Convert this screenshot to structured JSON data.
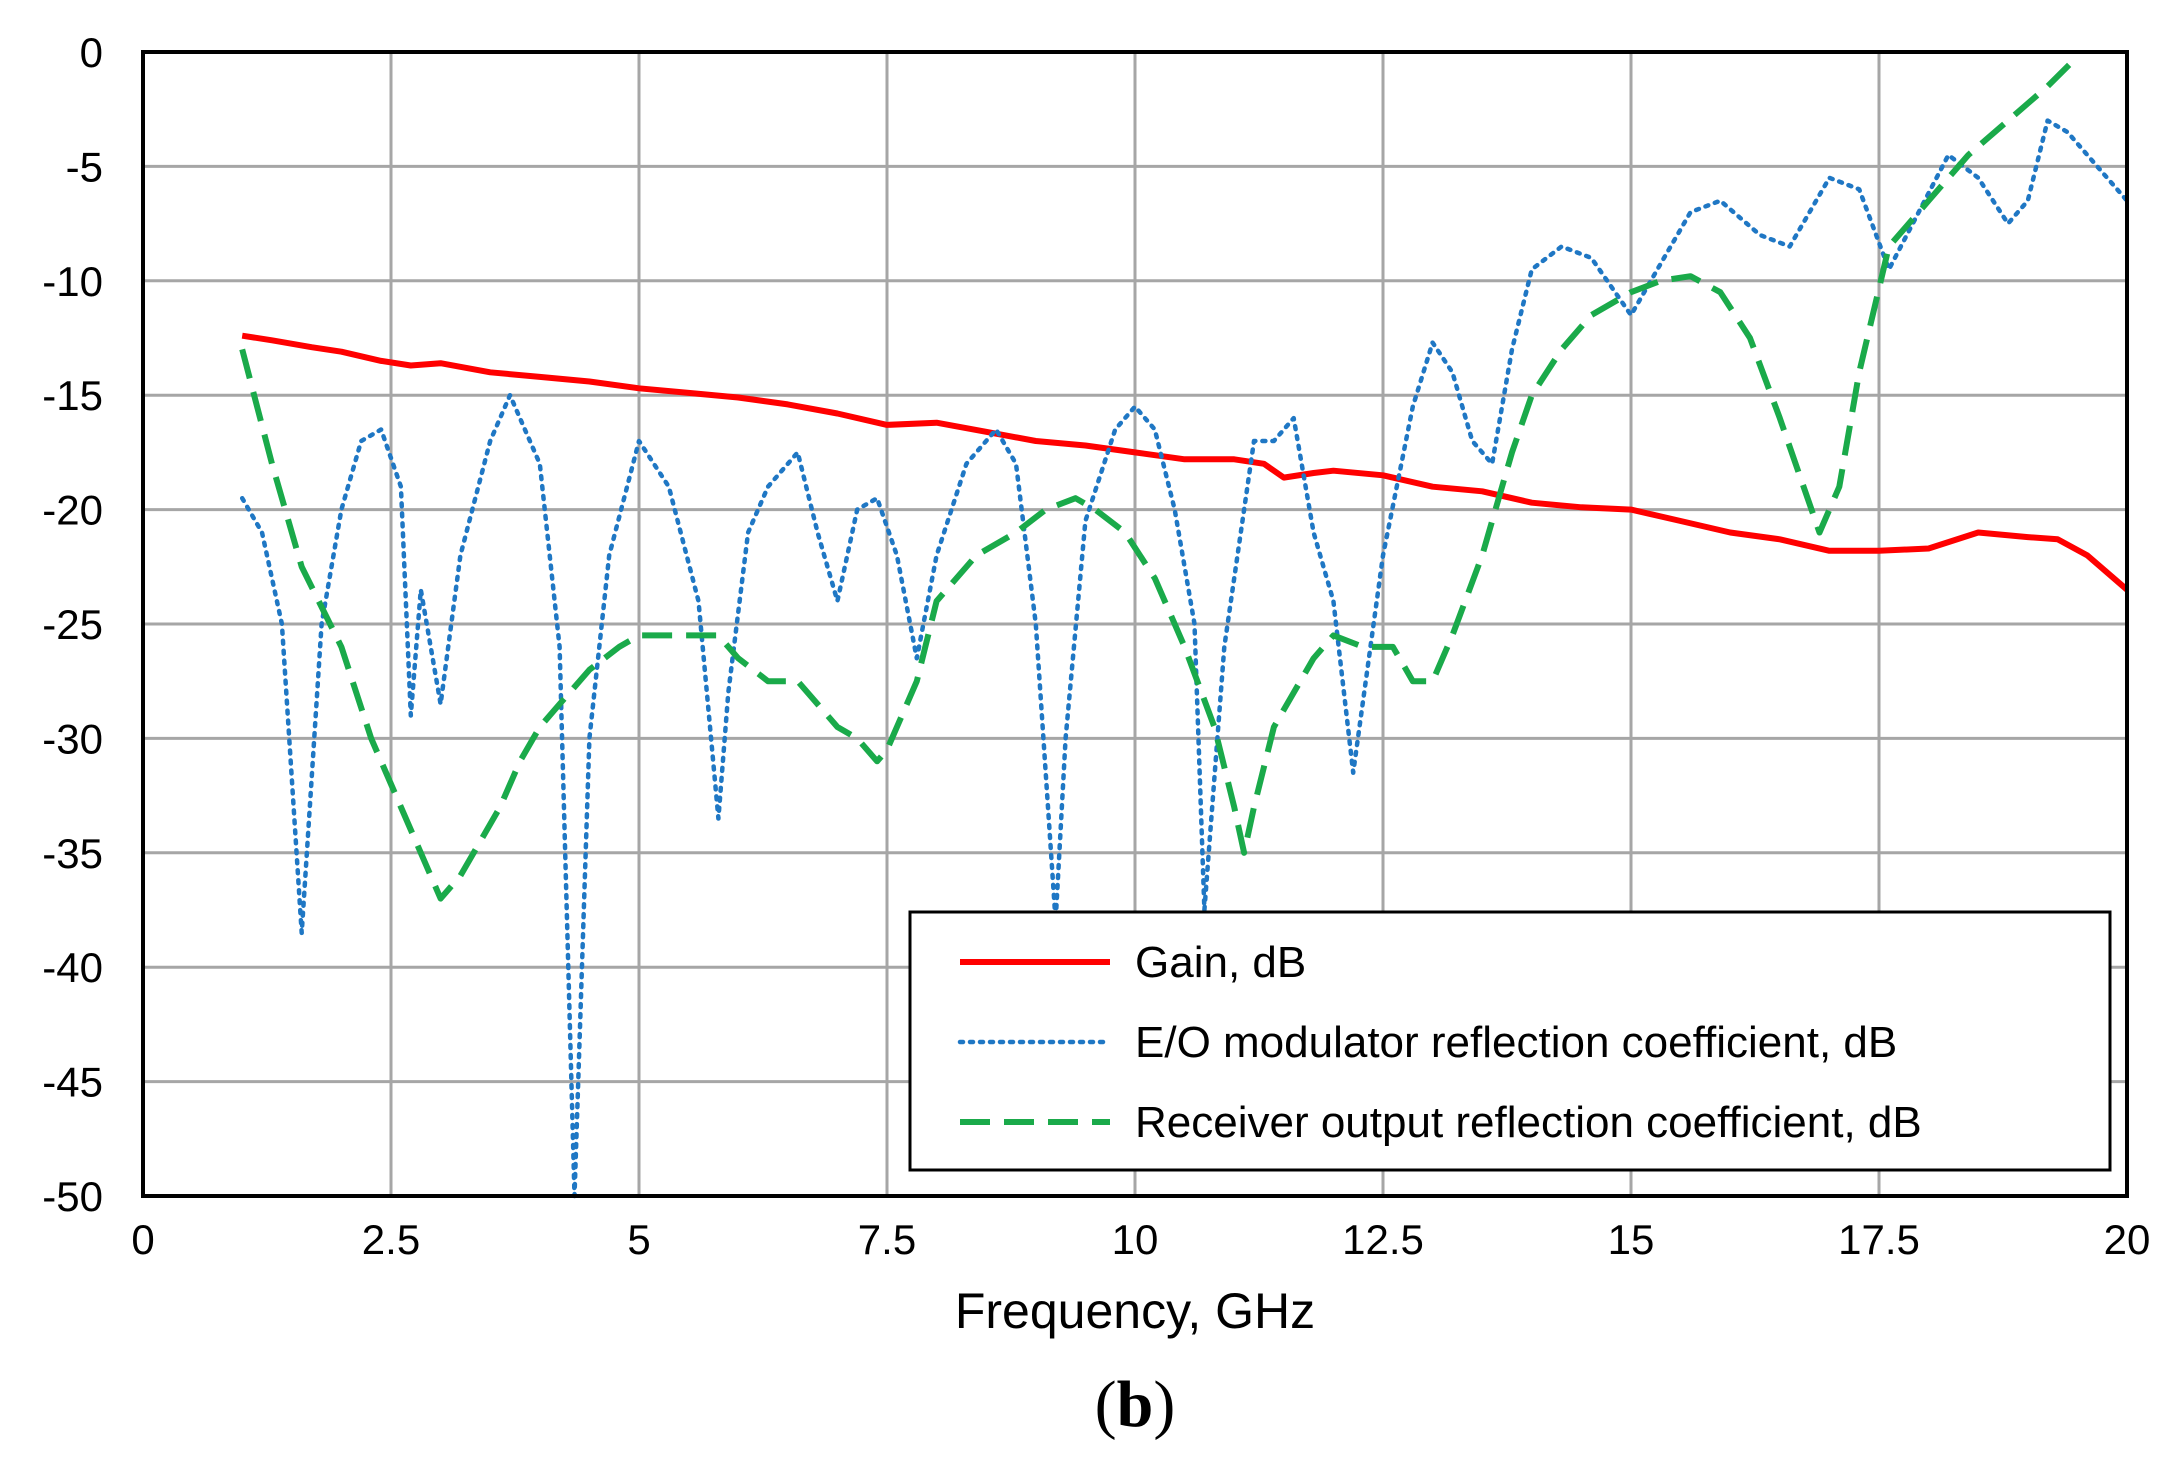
{
  "chart_data": {
    "type": "line",
    "title": "",
    "xlabel": "Frequency, GHz",
    "ylabel": "",
    "panel_label": {
      "open": "(",
      "letter": "b",
      "close": ")"
    },
    "xlim": [
      0,
      20
    ],
    "ylim": [
      -50,
      0
    ],
    "x_ticks": [
      0,
      2.5,
      5,
      7.5,
      10,
      12.5,
      15,
      17.5,
      20
    ],
    "x_tick_labels": [
      "0",
      "2.5",
      "5",
      "7.5",
      "10",
      "12.5",
      "15",
      "17.5",
      "20"
    ],
    "y_ticks": [
      0,
      -5,
      -10,
      -15,
      -20,
      -25,
      -30,
      -35,
      -40,
      -45,
      -50
    ],
    "y_tick_labels": [
      "0",
      "-5",
      "-10",
      "-15",
      "-20",
      "-25",
      "-30",
      "-35",
      "-40",
      "-45",
      "-50"
    ],
    "grid": true,
    "legend_position": "bottom-right",
    "series": [
      {
        "name": "Gain, dB",
        "color": "#ff0000",
        "style": "solid",
        "x": [
          1.0,
          1.3,
          1.7,
          2.0,
          2.4,
          2.7,
          3.0,
          3.5,
          4.0,
          4.5,
          5.0,
          5.5,
          6.0,
          6.5,
          7.0,
          7.5,
          8.0,
          8.5,
          9.0,
          9.5,
          10.0,
          10.5,
          11.0,
          11.3,
          11.5,
          11.8,
          12.0,
          12.5,
          13.0,
          13.5,
          14.0,
          14.5,
          15.0,
          15.5,
          16.0,
          16.5,
          17.0,
          17.5,
          18.0,
          18.5,
          19.0,
          19.3,
          19.6,
          20.0
        ],
        "y": [
          -12.4,
          -12.6,
          -12.9,
          -13.1,
          -13.5,
          -13.7,
          -13.6,
          -14.0,
          -14.2,
          -14.4,
          -14.7,
          -14.9,
          -15.1,
          -15.4,
          -15.8,
          -16.3,
          -16.2,
          -16.6,
          -17.0,
          -17.2,
          -17.5,
          -17.8,
          -17.8,
          -18.0,
          -18.6,
          -18.4,
          -18.3,
          -18.5,
          -19.0,
          -19.2,
          -19.7,
          -19.9,
          -20.0,
          -20.5,
          -21.0,
          -21.3,
          -21.8,
          -21.8,
          -21.7,
          -21.0,
          -21.2,
          -21.3,
          -22.0,
          -23.5
        ]
      },
      {
        "name": "E/O modulator reflection coefficient, dB",
        "color": "#1f77c4",
        "style": "dotted",
        "x": [
          1.0,
          1.2,
          1.4,
          1.6,
          1.8,
          2.0,
          2.2,
          2.4,
          2.6,
          2.7,
          2.8,
          2.9,
          3.0,
          3.2,
          3.5,
          3.7,
          4.0,
          4.2,
          4.35,
          4.5,
          4.7,
          5.0,
          5.3,
          5.6,
          5.8,
          5.9,
          6.1,
          6.3,
          6.6,
          6.8,
          7.0,
          7.2,
          7.4,
          7.6,
          7.8,
          8.0,
          8.3,
          8.6,
          8.8,
          9.0,
          9.2,
          9.3,
          9.5,
          9.8,
          10.0,
          10.2,
          10.4,
          10.6,
          10.7,
          10.9,
          11.2,
          11.4,
          11.6,
          11.8,
          12.0,
          12.2,
          12.5,
          12.8,
          13.0,
          13.2,
          13.4,
          13.6,
          13.8,
          14.0,
          14.3,
          14.6,
          15.0,
          15.2,
          15.6,
          15.9,
          16.3,
          16.6,
          17.0,
          17.3,
          17.6,
          17.9,
          18.2,
          18.5,
          18.8,
          19.0,
          19.2,
          19.4,
          19.7,
          20.0
        ],
        "y": [
          -19.5,
          -21.0,
          -25.0,
          -38.5,
          -25.0,
          -20.0,
          -17.0,
          -16.5,
          -19.0,
          -29.0,
          -23.5,
          -26.0,
          -28.5,
          -22.0,
          -17.0,
          -15.0,
          -18.0,
          -26.0,
          -50.0,
          -30.0,
          -22.0,
          -17.0,
          -19.0,
          -24.0,
          -33.5,
          -28.0,
          -21.0,
          -19.0,
          -17.5,
          -21.0,
          -24.0,
          -20.0,
          -19.5,
          -22.0,
          -26.5,
          -22.0,
          -18.0,
          -16.5,
          -18.0,
          -25.0,
          -38.0,
          -30.0,
          -20.5,
          -16.5,
          -15.5,
          -16.5,
          -20.0,
          -25.0,
          -37.5,
          -26.0,
          -17.0,
          -17.0,
          -16.0,
          -21.0,
          -24.0,
          -31.5,
          -22.0,
          -15.5,
          -12.7,
          -14.0,
          -17.0,
          -18.0,
          -13.0,
          -9.5,
          -8.5,
          -9.0,
          -11.5,
          -10.0,
          -7.0,
          -6.5,
          -8.0,
          -8.5,
          -5.5,
          -6.0,
          -9.5,
          -7.0,
          -4.5,
          -5.5,
          -7.5,
          -6.5,
          -3.0,
          -3.5,
          -5.0,
          -6.5
        ]
      },
      {
        "name": "Receiver output reflection coefficient, dB",
        "color": "#1aaa4a",
        "style": "dashed",
        "x": [
          1.0,
          1.3,
          1.6,
          2.0,
          2.3,
          2.6,
          2.8,
          3.0,
          3.2,
          3.4,
          3.6,
          3.8,
          4.0,
          4.2,
          4.5,
          4.8,
          5.0,
          5.3,
          5.6,
          5.8,
          6.0,
          6.3,
          6.6,
          6.8,
          7.0,
          7.2,
          7.4,
          7.5,
          7.8,
          8.0,
          8.4,
          8.8,
          9.1,
          9.4,
          9.6,
          9.9,
          10.2,
          10.5,
          10.8,
          11.0,
          11.1,
          11.2,
          11.4,
          11.6,
          11.8,
          12.0,
          12.3,
          12.6,
          12.8,
          13.0,
          13.2,
          13.5,
          13.8,
          14.0,
          14.3,
          14.6,
          15.0,
          15.3,
          15.6,
          15.9,
          16.2,
          16.5,
          16.7,
          16.9,
          17.1,
          17.3,
          17.6,
          18.0,
          18.4,
          18.8,
          19.2,
          19.5
        ],
        "y": [
          -13.0,
          -18.0,
          -22.5,
          -26.0,
          -30.0,
          -33.0,
          -35.0,
          -37.0,
          -36.0,
          -34.5,
          -33.0,
          -31.0,
          -29.5,
          -28.5,
          -27.0,
          -26.0,
          -25.5,
          -25.5,
          -25.5,
          -25.5,
          -26.5,
          -27.5,
          -27.5,
          -28.5,
          -29.5,
          -30.0,
          -31.0,
          -30.5,
          -27.5,
          -24.0,
          -22.0,
          -21.0,
          -20.0,
          -19.5,
          -20.0,
          -21.0,
          -23.0,
          -26.0,
          -29.5,
          -33.0,
          -35.0,
          -33.0,
          -29.5,
          -28.0,
          -26.5,
          -25.5,
          -26.0,
          -26.0,
          -27.5,
          -27.5,
          -25.5,
          -22.0,
          -17.5,
          -15.0,
          -13.0,
          -11.5,
          -10.5,
          -10.0,
          -9.8,
          -10.5,
          -12.5,
          -16.0,
          -18.5,
          -21.0,
          -19.0,
          -14.0,
          -8.5,
          -6.5,
          -4.5,
          -3.0,
          -1.5,
          -0.2
        ]
      }
    ]
  }
}
